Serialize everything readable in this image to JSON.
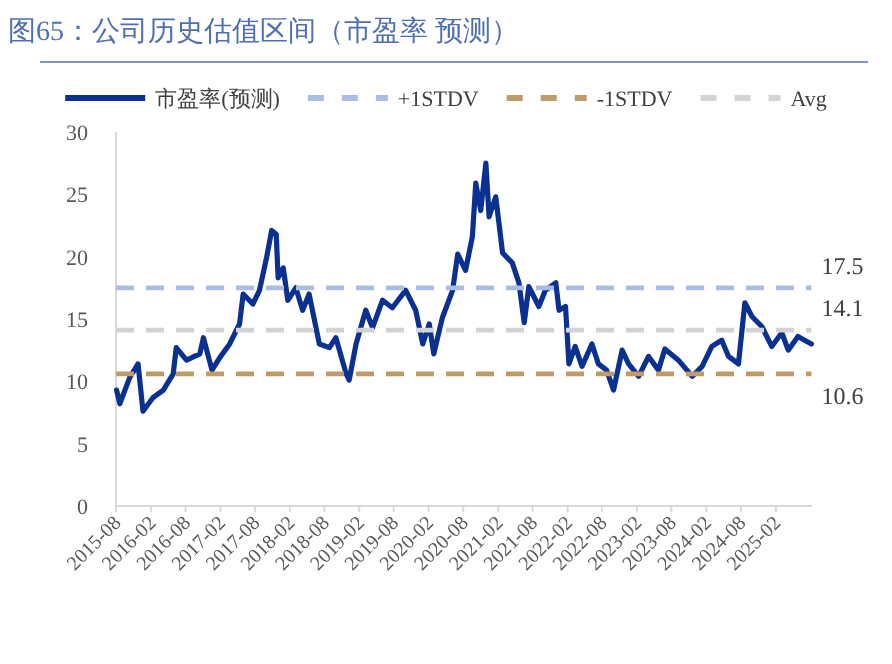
{
  "chart_data": {
    "type": "line",
    "title": "图65：公司历史估值区间（市盈率 预测）",
    "xlim": [
      "2015-08",
      "2025-08-10"
    ],
    "xticks": [
      "2015-08",
      "2016-02",
      "2016-08",
      "2017-02",
      "2017-08",
      "2018-02",
      "2018-08",
      "2019-02",
      "2019-08",
      "2020-02",
      "2020-08",
      "2021-02",
      "2021-08",
      "2022-02",
      "2022-08",
      "2023-02",
      "2023-08",
      "2024-02",
      "2024-08",
      "2025-02"
    ],
    "ylim": [
      0,
      30
    ],
    "yticks": [
      0,
      5,
      10,
      15,
      20,
      25,
      30
    ],
    "grid": false,
    "legend": "top",
    "series": [
      {
        "name": "市盈率(预测)",
        "color": "#0a318f",
        "line_style": "solid",
        "x": [
          "2015-08-04",
          "2015-08-21",
          "2015-10-12",
          "2015-11-25",
          "2015-12-21",
          "2016-02-12",
          "2016-04-06",
          "2016-05-28",
          "2016-06-13",
          "2016-08-06",
          "2016-10-15",
          "2016-11-03",
          "2016-12-18",
          "2017-01-28",
          "2017-03-21",
          "2017-05-12",
          "2017-05-31",
          "2017-07-21",
          "2017-08-25",
          "2017-10-01",
          "2017-10-28",
          "2017-11-21",
          "2017-12-01",
          "2017-12-28",
          "2018-01-21",
          "2018-03-04",
          "2018-04-09",
          "2018-05-13",
          "2018-07-06",
          "2018-08-28",
          "2018-10-01",
          "2018-11-24",
          "2018-12-10",
          "2019-01-15",
          "2019-03-07",
          "2019-04-12",
          "2019-06-03",
          "2019-07-25",
          "2019-10-03",
          "2019-11-25",
          "2020-01-01",
          "2020-02-04",
          "2020-02-28",
          "2020-04-13",
          "2020-06-06",
          "2020-07-03",
          "2020-08-13",
          "2020-09-18",
          "2020-10-06",
          "2020-11-01",
          "2020-11-28",
          "2020-12-15",
          "2021-01-19",
          "2021-02-24",
          "2021-04-16",
          "2021-05-21",
          "2021-06-18",
          "2021-07-12",
          "2021-09-03",
          "2021-10-07",
          "2021-12-01",
          "2021-12-18",
          "2022-01-21",
          "2022-02-08",
          "2022-03-13",
          "2022-04-18",
          "2022-06-09",
          "2022-07-13",
          "2022-08-25",
          "2022-10-01",
          "2022-11-15",
          "2022-12-19",
          "2023-02-10",
          "2023-04-03",
          "2023-05-25",
          "2023-06-28",
          "2023-09-07",
          "2023-11-19",
          "2024-01-10",
          "2024-03-01",
          "2024-04-22",
          "2024-05-28",
          "2024-07-19",
          "2024-08-22",
          "2024-09-28",
          "2024-11-19",
          "2025-01-10",
          "2025-03-04",
          "2025-04-07",
          "2025-05-28",
          "2025-08-07"
        ],
        "values": [
          9.3,
          8.2,
          10.3,
          11.4,
          7.6,
          8.7,
          9.3,
          10.6,
          12.7,
          11.7,
          12.2,
          13.5,
          10.9,
          11.9,
          13.0,
          14.6,
          17.0,
          16.2,
          17.3,
          19.9,
          22.1,
          21.8,
          18.3,
          19.1,
          16.5,
          17.5,
          15.7,
          17.0,
          13.0,
          12.7,
          13.5,
          10.6,
          10.1,
          13.0,
          15.7,
          14.3,
          16.5,
          15.9,
          17.3,
          15.7,
          13.0,
          14.6,
          12.2,
          15.1,
          17.3,
          20.2,
          18.9,
          21.6,
          25.9,
          23.7,
          27.5,
          23.2,
          24.8,
          20.3,
          19.5,
          17.9,
          14.7,
          17.6,
          16.0,
          17.3,
          17.9,
          15.7,
          16.0,
          11.4,
          12.8,
          11.2,
          13.0,
          11.4,
          10.9,
          9.3,
          12.5,
          11.4,
          10.4,
          12.0,
          10.9,
          12.6,
          11.7,
          10.4,
          11.2,
          12.8,
          13.3,
          12.0,
          11.4,
          16.3,
          15.2,
          14.4,
          12.8,
          13.9,
          12.5,
          13.6,
          13.0
        ]
      },
      {
        "name": "+1STDV",
        "color": "#a9bde6",
        "line_style": "dashed",
        "x": [
          "2015-08-01",
          "2025-08-07"
        ],
        "values": [
          17.5,
          17.5
        ],
        "value_labels": [
          null,
          "17.5"
        ]
      },
      {
        "name": "-1STDV",
        "color": "#c09b6a",
        "line_style": "dashed",
        "x": [
          "2015-08-01",
          "2025-08-07"
        ],
        "values": [
          10.6,
          10.6
        ],
        "value_labels": [
          null,
          "10.6"
        ]
      },
      {
        "name": "Avg",
        "color": "#d3d3d3",
        "line_style": "dashed",
        "x": [
          "2015-08-01",
          "2025-08-07"
        ],
        "values": [
          14.1,
          14.1
        ],
        "value_labels": [
          null,
          "14.1"
        ]
      }
    ]
  }
}
